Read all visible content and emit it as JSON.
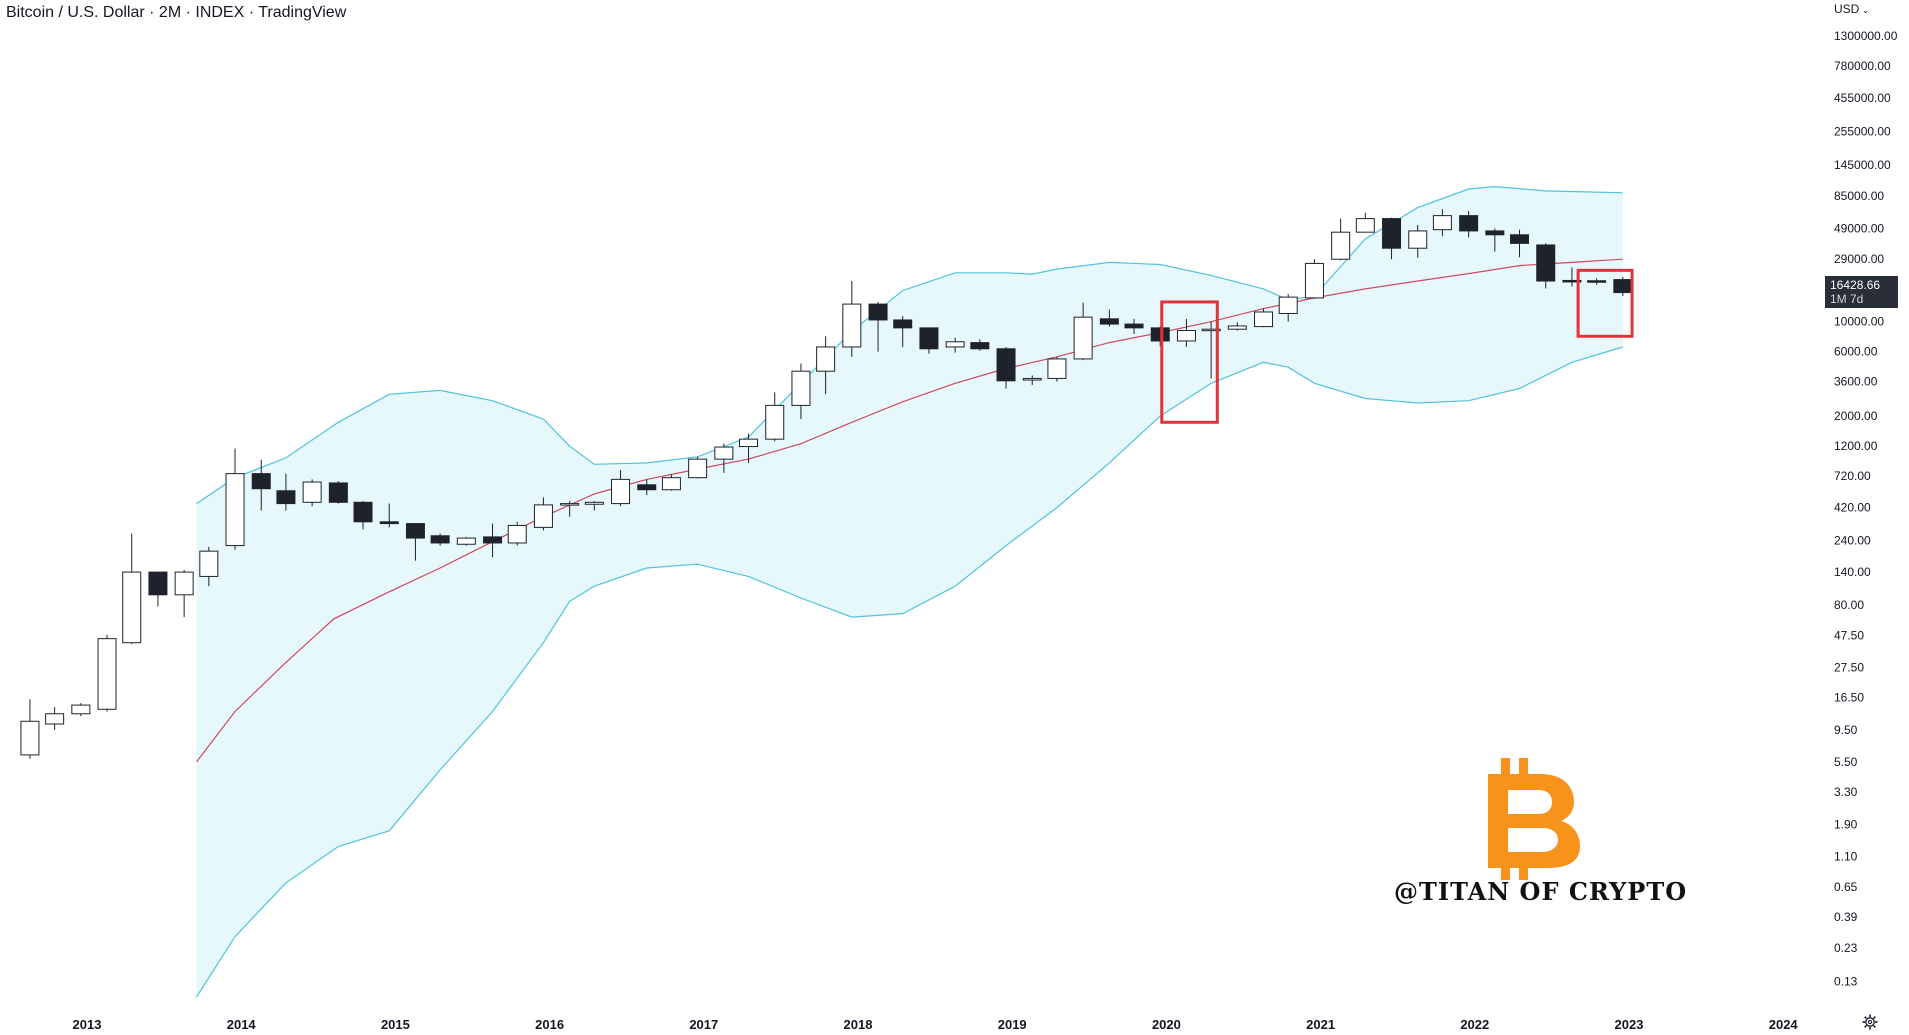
{
  "header": {
    "title": "Bitcoin / U.S. Dollar · 2M · INDEX · TradingView",
    "currency": "USD"
  },
  "price_tag": {
    "value": "16428.66",
    "countdown": "1M 7d"
  },
  "watermark": {
    "symbol": "bitcoin-logo-icon",
    "text": "@TITAN OF CRYPTO",
    "color": "#f7931a"
  },
  "colors": {
    "band_fill": "#e6f8fb",
    "band_line": "#4fc3dc",
    "basis_line": "#d2485e",
    "candle_up": "#ffffff",
    "candle_down": "#1e222d",
    "highlight_box": "#e0333c"
  },
  "chart_data": {
    "type": "candlestick",
    "scale": "log",
    "ylim": [
      0.1,
      1600000
    ],
    "xlim": [
      2012.6,
      2024.55
    ],
    "y_ticks": [
      "1300000.00",
      "780000.00",
      "455000.00",
      "255000.00",
      "145000.00",
      "85000.00",
      "49000.00",
      "29000.00",
      "10000.00",
      "6000.00",
      "3600.00",
      "2000.00",
      "1200.00",
      "720.00",
      "420.00",
      "240.00",
      "140.00",
      "80.00",
      "47.50",
      "27.50",
      "16.50",
      "9.50",
      "5.50",
      "3.30",
      "1.90",
      "1.10",
      "0.65",
      "0.39",
      "0.23",
      "0.13"
    ],
    "y_tick_values": [
      1300000,
      780000,
      455000,
      255000,
      145000,
      85000,
      49000,
      29000,
      10000,
      6000,
      3600,
      2000,
      1200,
      720,
      420,
      240,
      140,
      80,
      47.5,
      27.5,
      16.5,
      9.5,
      5.5,
      3.3,
      1.9,
      1.1,
      0.65,
      0.39,
      0.23,
      0.13
    ],
    "x_ticks": [
      "2013",
      "2014",
      "2015",
      "2016",
      "2017",
      "2018",
      "2019",
      "2020",
      "2021",
      "2022",
      "2023",
      "2024"
    ],
    "x_tick_values": [
      2013,
      2014,
      2015,
      2016,
      2017,
      2018,
      2019,
      2020,
      2021,
      2022,
      2023,
      2024
    ],
    "candles": [
      {
        "t": 2012.63,
        "o": 6.2,
        "h": 16,
        "l": 5.8,
        "c": 11
      },
      {
        "t": 2012.79,
        "o": 10.5,
        "h": 14,
        "l": 9.5,
        "c": 12.5
      },
      {
        "t": 2012.96,
        "o": 12.5,
        "h": 15,
        "l": 12,
        "c": 14.5
      },
      {
        "t": 2013.13,
        "o": 13.5,
        "h": 48,
        "l": 13,
        "c": 45
      },
      {
        "t": 2013.29,
        "o": 42,
        "h": 270,
        "l": 41,
        "c": 140
      },
      {
        "t": 2013.46,
        "o": 140,
        "h": 140,
        "l": 78,
        "c": 95
      },
      {
        "t": 2013.63,
        "o": 95,
        "h": 145,
        "l": 65,
        "c": 140
      },
      {
        "t": 2013.79,
        "o": 130,
        "h": 215,
        "l": 110,
        "c": 200
      },
      {
        "t": 2013.96,
        "o": 220,
        "h": 1150,
        "l": 205,
        "c": 750
      },
      {
        "t": 2014.13,
        "o": 750,
        "h": 950,
        "l": 400,
        "c": 580
      },
      {
        "t": 2014.29,
        "o": 560,
        "h": 750,
        "l": 400,
        "c": 450
      },
      {
        "t": 2014.46,
        "o": 460,
        "h": 680,
        "l": 430,
        "c": 650
      },
      {
        "t": 2014.63,
        "o": 640,
        "h": 660,
        "l": 450,
        "c": 460
      },
      {
        "t": 2014.79,
        "o": 460,
        "h": 470,
        "l": 290,
        "c": 330
      },
      {
        "t": 2014.96,
        "o": 330,
        "h": 450,
        "l": 300,
        "c": 320
      },
      {
        "t": 2015.13,
        "o": 320,
        "h": 320,
        "l": 170,
        "c": 250
      },
      {
        "t": 2015.29,
        "o": 260,
        "h": 270,
        "l": 220,
        "c": 230
      },
      {
        "t": 2015.46,
        "o": 225,
        "h": 255,
        "l": 220,
        "c": 250
      },
      {
        "t": 2015.63,
        "o": 255,
        "h": 320,
        "l": 180,
        "c": 230
      },
      {
        "t": 2015.79,
        "o": 230,
        "h": 330,
        "l": 220,
        "c": 310
      },
      {
        "t": 2015.96,
        "o": 300,
        "h": 500,
        "l": 285,
        "c": 440
      },
      {
        "t": 2016.13,
        "o": 440,
        "h": 470,
        "l": 360,
        "c": 450
      },
      {
        "t": 2016.29,
        "o": 445,
        "h": 470,
        "l": 400,
        "c": 460
      },
      {
        "t": 2016.46,
        "o": 450,
        "h": 800,
        "l": 430,
        "c": 680
      },
      {
        "t": 2016.63,
        "o": 620,
        "h": 680,
        "l": 520,
        "c": 570
      },
      {
        "t": 2016.79,
        "o": 570,
        "h": 740,
        "l": 560,
        "c": 700
      },
      {
        "t": 2016.96,
        "o": 700,
        "h": 1000,
        "l": 690,
        "c": 960
      },
      {
        "t": 2017.13,
        "o": 960,
        "h": 1250,
        "l": 760,
        "c": 1180
      },
      {
        "t": 2017.29,
        "o": 1190,
        "h": 1480,
        "l": 900,
        "c": 1350
      },
      {
        "t": 2017.46,
        "o": 1350,
        "h": 3000,
        "l": 1300,
        "c": 2400
      },
      {
        "t": 2017.63,
        "o": 2400,
        "h": 4900,
        "l": 1900,
        "c": 4300
      },
      {
        "t": 2017.79,
        "o": 4300,
        "h": 7800,
        "l": 2900,
        "c": 6500
      },
      {
        "t": 2017.96,
        "o": 6500,
        "h": 20000,
        "l": 5500,
        "c": 13500
      },
      {
        "t": 2018.13,
        "o": 13500,
        "h": 14000,
        "l": 6000,
        "c": 10300
      },
      {
        "t": 2018.29,
        "o": 10300,
        "h": 11000,
        "l": 6500,
        "c": 9000
      },
      {
        "t": 2018.46,
        "o": 9000,
        "h": 9000,
        "l": 5800,
        "c": 6300
      },
      {
        "t": 2018.63,
        "o": 6500,
        "h": 7600,
        "l": 5900,
        "c": 7100
      },
      {
        "t": 2018.79,
        "o": 7000,
        "h": 7400,
        "l": 6100,
        "c": 6300
      },
      {
        "t": 2018.96,
        "o": 6300,
        "h": 6500,
        "l": 3200,
        "c": 3650
      },
      {
        "t": 2019.13,
        "o": 3700,
        "h": 4000,
        "l": 3400,
        "c": 3800
      },
      {
        "t": 2019.29,
        "o": 3800,
        "h": 5500,
        "l": 3600,
        "c": 5300
      },
      {
        "t": 2019.46,
        "o": 5300,
        "h": 13800,
        "l": 5200,
        "c": 10800
      },
      {
        "t": 2019.63,
        "o": 10500,
        "h": 12300,
        "l": 9200,
        "c": 9600
      },
      {
        "t": 2019.79,
        "o": 9600,
        "h": 10500,
        "l": 8100,
        "c": 9000
      },
      {
        "t": 2019.96,
        "o": 9000,
        "h": 9200,
        "l": 6600,
        "c": 7200
      },
      {
        "t": 2020.13,
        "o": 7200,
        "h": 10500,
        "l": 6500,
        "c": 8600
      },
      {
        "t": 2020.29,
        "o": 8700,
        "h": 10000,
        "l": 3800,
        "c": 8800
      },
      {
        "t": 2020.46,
        "o": 8800,
        "h": 9900,
        "l": 8600,
        "c": 9300
      },
      {
        "t": 2020.63,
        "o": 9200,
        "h": 12500,
        "l": 9100,
        "c": 11800
      },
      {
        "t": 2020.79,
        "o": 11500,
        "h": 16000,
        "l": 10000,
        "c": 15200
      },
      {
        "t": 2020.96,
        "o": 15000,
        "h": 29000,
        "l": 14800,
        "c": 27000
      },
      {
        "t": 2021.13,
        "o": 29000,
        "h": 58000,
        "l": 28500,
        "c": 46000
      },
      {
        "t": 2021.29,
        "o": 46000,
        "h": 64000,
        "l": 46000,
        "c": 58000
      },
      {
        "t": 2021.46,
        "o": 58000,
        "h": 59000,
        "l": 29000,
        "c": 35000
      },
      {
        "t": 2021.63,
        "o": 35000,
        "h": 52000,
        "l": 29800,
        "c": 47000
      },
      {
        "t": 2021.79,
        "o": 48000,
        "h": 68000,
        "l": 43000,
        "c": 61000
      },
      {
        "t": 2021.96,
        "o": 61000,
        "h": 66000,
        "l": 42000,
        "c": 47000
      },
      {
        "t": 2022.13,
        "o": 47000,
        "h": 49000,
        "l": 33000,
        "c": 44000
      },
      {
        "t": 2022.29,
        "o": 44000,
        "h": 48000,
        "l": 30000,
        "c": 38000
      },
      {
        "t": 2022.46,
        "o": 37000,
        "h": 38000,
        "l": 17600,
        "c": 20000
      },
      {
        "t": 2022.63,
        "o": 20200,
        "h": 25200,
        "l": 18200,
        "c": 20000
      },
      {
        "t": 2022.79,
        "o": 20100,
        "h": 21000,
        "l": 18800,
        "c": 20000
      },
      {
        "t": 2022.96,
        "o": 20500,
        "h": 21500,
        "l": 15500,
        "c": 16428.66
      }
    ],
    "basis": [
      {
        "t": 2013.71,
        "v": 5.5
      },
      {
        "t": 2013.96,
        "v": 13
      },
      {
        "t": 2014.29,
        "v": 30
      },
      {
        "t": 2014.6,
        "v": 63
      },
      {
        "t": 2014.96,
        "v": 100
      },
      {
        "t": 2015.29,
        "v": 150
      },
      {
        "t": 2015.63,
        "v": 235
      },
      {
        "t": 2015.96,
        "v": 360
      },
      {
        "t": 2016.29,
        "v": 530
      },
      {
        "t": 2016.63,
        "v": 680
      },
      {
        "t": 2016.96,
        "v": 810
      },
      {
        "t": 2017.29,
        "v": 960
      },
      {
        "t": 2017.63,
        "v": 1250
      },
      {
        "t": 2017.96,
        "v": 1800
      },
      {
        "t": 2018.29,
        "v": 2550
      },
      {
        "t": 2018.63,
        "v": 3500
      },
      {
        "t": 2018.96,
        "v": 4500
      },
      {
        "t": 2019.29,
        "v": 5500
      },
      {
        "t": 2019.63,
        "v": 7000
      },
      {
        "t": 2019.96,
        "v": 8300
      },
      {
        "t": 2020.29,
        "v": 10000
      },
      {
        "t": 2020.63,
        "v": 12500
      },
      {
        "t": 2020.96,
        "v": 15000
      },
      {
        "t": 2021.29,
        "v": 17500
      },
      {
        "t": 2021.63,
        "v": 20000
      },
      {
        "t": 2021.96,
        "v": 22700
      },
      {
        "t": 2022.29,
        "v": 26000
      },
      {
        "t": 2022.63,
        "v": 27500
      },
      {
        "t": 2022.96,
        "v": 29000
      }
    ],
    "upper": [
      {
        "t": 2013.71,
        "v": 450
      },
      {
        "t": 2013.96,
        "v": 700
      },
      {
        "t": 2014.29,
        "v": 980
      },
      {
        "t": 2014.63,
        "v": 1800
      },
      {
        "t": 2014.96,
        "v": 2900
      },
      {
        "t": 2015.29,
        "v": 3100
      },
      {
        "t": 2015.63,
        "v": 2600
      },
      {
        "t": 2015.96,
        "v": 1900
      },
      {
        "t": 2016.13,
        "v": 1200
      },
      {
        "t": 2016.29,
        "v": 880
      },
      {
        "t": 2016.63,
        "v": 900
      },
      {
        "t": 2016.96,
        "v": 1000
      },
      {
        "t": 2017.29,
        "v": 1400
      },
      {
        "t": 2017.63,
        "v": 3500
      },
      {
        "t": 2017.96,
        "v": 8500
      },
      {
        "t": 2018.29,
        "v": 17000
      },
      {
        "t": 2018.63,
        "v": 23000
      },
      {
        "t": 2018.96,
        "v": 23000
      },
      {
        "t": 2019.13,
        "v": 22500
      },
      {
        "t": 2019.29,
        "v": 24500
      },
      {
        "t": 2019.63,
        "v": 27500
      },
      {
        "t": 2019.96,
        "v": 26500
      },
      {
        "t": 2020.29,
        "v": 22000
      },
      {
        "t": 2020.63,
        "v": 17500
      },
      {
        "t": 2020.79,
        "v": 14500
      },
      {
        "t": 2020.96,
        "v": 15500
      },
      {
        "t": 2021.29,
        "v": 41000
      },
      {
        "t": 2021.63,
        "v": 70000
      },
      {
        "t": 2021.96,
        "v": 96000
      },
      {
        "t": 2022.13,
        "v": 100000
      },
      {
        "t": 2022.46,
        "v": 93000
      },
      {
        "t": 2022.96,
        "v": 90000
      }
    ],
    "lower": [
      {
        "t": 2013.71,
        "v": 0.1
      },
      {
        "t": 2013.96,
        "v": 0.28
      },
      {
        "t": 2014.29,
        "v": 0.7
      },
      {
        "t": 2014.63,
        "v": 1.3
      },
      {
        "t": 2014.96,
        "v": 1.7
      },
      {
        "t": 2015.29,
        "v": 4.8
      },
      {
        "t": 2015.63,
        "v": 13
      },
      {
        "t": 2015.96,
        "v": 42
      },
      {
        "t": 2016.13,
        "v": 85
      },
      {
        "t": 2016.29,
        "v": 110
      },
      {
        "t": 2016.63,
        "v": 150
      },
      {
        "t": 2016.96,
        "v": 160
      },
      {
        "t": 2017.29,
        "v": 130
      },
      {
        "t": 2017.63,
        "v": 90
      },
      {
        "t": 2017.96,
        "v": 65
      },
      {
        "t": 2018.29,
        "v": 69
      },
      {
        "t": 2018.63,
        "v": 110
      },
      {
        "t": 2018.96,
        "v": 220
      },
      {
        "t": 2019.29,
        "v": 420
      },
      {
        "t": 2019.63,
        "v": 900
      },
      {
        "t": 2019.96,
        "v": 2000
      },
      {
        "t": 2020.29,
        "v": 3500
      },
      {
        "t": 2020.63,
        "v": 5000
      },
      {
        "t": 2020.79,
        "v": 4600
      },
      {
        "t": 2020.96,
        "v": 3500
      },
      {
        "t": 2021.29,
        "v": 2700
      },
      {
        "t": 2021.63,
        "v": 2500
      },
      {
        "t": 2021.96,
        "v": 2600
      },
      {
        "t": 2022.29,
        "v": 3200
      },
      {
        "t": 2022.63,
        "v": 5000
      },
      {
        "t": 2022.96,
        "v": 6500
      }
    ],
    "highlights": [
      {
        "t0": 2019.97,
        "t1": 2020.33,
        "v_top": 14000,
        "v_bottom": 1800
      },
      {
        "t0": 2022.67,
        "t1": 2023.02,
        "v_top": 24000,
        "v_bottom": 7800
      }
    ]
  }
}
